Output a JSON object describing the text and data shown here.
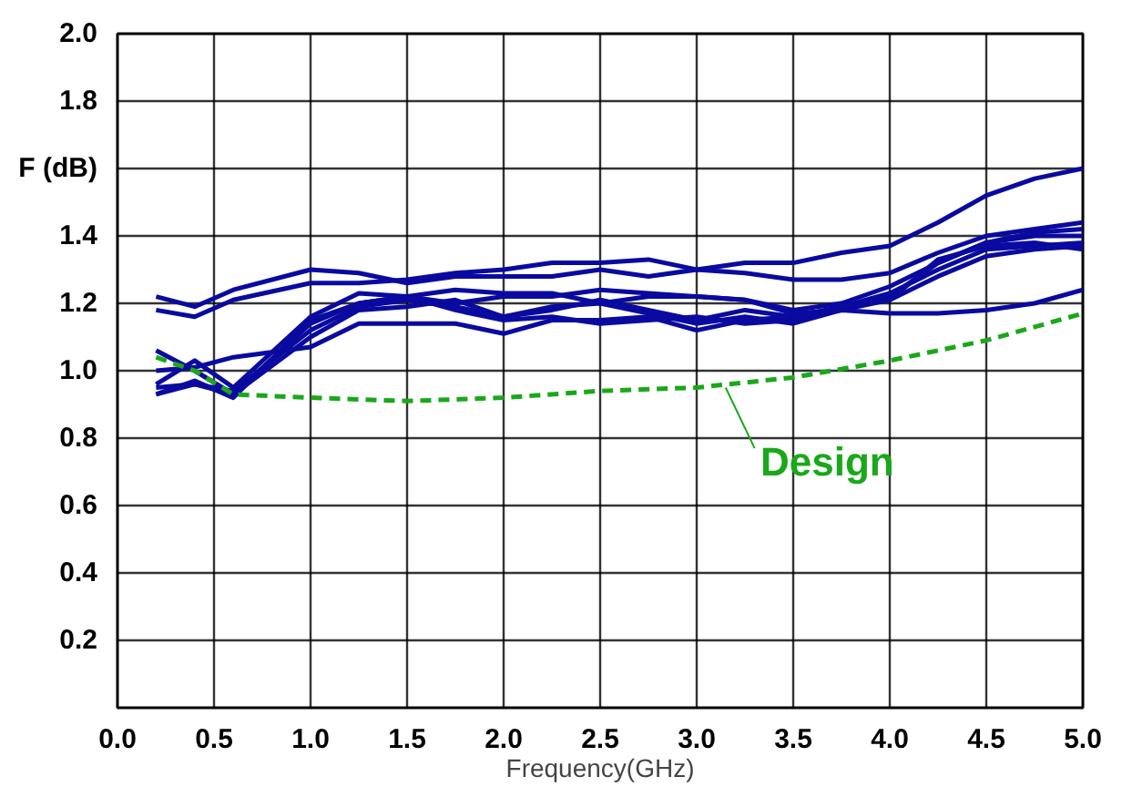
{
  "chart_data": {
    "type": "line",
    "xlabel": "Frequency(GHz)",
    "ylabel": "F (dB)",
    "xlim": [
      0,
      5
    ],
    "ylim": [
      0,
      2
    ],
    "xticks": [
      {
        "value": 0,
        "label": "0.0"
      },
      0.5,
      {
        "value": 1,
        "label": "1.0"
      },
      1.5,
      {
        "value": 2,
        "label": "2.0"
      },
      2.5,
      {
        "value": 3,
        "label": "3.0"
      },
      3.5,
      {
        "value": 4,
        "label": "4.0"
      },
      4.5,
      {
        "value": 5,
        "label": "5.0"
      }
    ],
    "yticks": [
      {
        "value": 0,
        "label": null
      },
      0.2,
      0.4,
      0.6,
      0.8,
      {
        "value": 1,
        "label": "1.0"
      },
      1.2,
      1.4,
      {
        "value": 1.6,
        "label": null
      },
      1.8,
      {
        "value": 2,
        "label": "2.0"
      }
    ],
    "grid": true,
    "marker": "none",
    "x": [
      0.2,
      0.4,
      0.6,
      1.0,
      1.25,
      1.5,
      1.75,
      2.0,
      2.25,
      2.5,
      2.75,
      3.0,
      3.25,
      3.5,
      3.75,
      4.0,
      4.25,
      4.5,
      4.75,
      5.0
    ],
    "series": [
      {
        "color": "#0a0aa0",
        "values": [
          1.22,
          1.19,
          1.24,
          1.3,
          1.29,
          1.26,
          1.28,
          1.28,
          1.28,
          1.3,
          1.28,
          1.3,
          1.29,
          1.27,
          1.27,
          1.29,
          1.35,
          1.4,
          1.42,
          1.44
        ]
      },
      {
        "color": "#0a0aa0",
        "values": [
          1.18,
          1.16,
          1.21,
          1.26,
          1.26,
          1.27,
          1.29,
          1.3,
          1.32,
          1.32,
          1.33,
          1.3,
          1.32,
          1.32,
          1.35,
          1.37,
          1.44,
          1.52,
          1.57,
          1.6
        ]
      },
      {
        "color": "#0a0aa0",
        "values": [
          1.06,
          1.0,
          0.93,
          1.14,
          1.2,
          1.22,
          1.24,
          1.23,
          1.23,
          1.2,
          1.22,
          1.22,
          1.21,
          1.18,
          1.2,
          1.25,
          1.32,
          1.38,
          1.4,
          1.4
        ]
      },
      {
        "color": "#0a0aa0",
        "values": [
          0.96,
          1.03,
          0.95,
          1.16,
          1.23,
          1.22,
          1.2,
          1.22,
          1.22,
          1.24,
          1.23,
          1.22,
          1.21,
          1.17,
          1.18,
          1.22,
          1.32,
          1.38,
          1.41,
          1.42
        ]
      },
      {
        "color": "#0a0aa0",
        "values": [
          0.93,
          0.96,
          0.94,
          1.12,
          1.19,
          1.21,
          1.19,
          1.16,
          1.18,
          1.21,
          1.18,
          1.15,
          1.18,
          1.16,
          1.19,
          1.23,
          1.3,
          1.36,
          1.37,
          1.38
        ]
      },
      {
        "color": "#0a0aa0",
        "values": [
          0.95,
          0.96,
          0.93,
          1.1,
          1.18,
          1.19,
          1.21,
          1.16,
          1.19,
          1.2,
          1.17,
          1.14,
          1.16,
          1.14,
          1.18,
          1.21,
          1.28,
          1.34,
          1.36,
          1.37
        ]
      },
      {
        "color": "#0a0aa0",
        "values": [
          1.0,
          1.01,
          1.04,
          1.07,
          1.14,
          1.14,
          1.14,
          1.11,
          1.15,
          1.15,
          1.16,
          1.12,
          1.15,
          1.16,
          1.18,
          1.17,
          1.17,
          1.18,
          1.2,
          1.24
        ]
      },
      {
        "color": "#0a0aa0",
        "values": [
          0.93,
          0.97,
          0.92,
          1.15,
          1.2,
          1.22,
          1.18,
          1.15,
          1.16,
          1.14,
          1.15,
          1.16,
          1.14,
          1.15,
          1.19,
          1.21,
          1.33,
          1.37,
          1.38,
          1.36
        ]
      },
      {
        "color": "#1aa81a",
        "line_style": "dashed",
        "x": [
          0.2,
          0.4,
          0.6,
          1.0,
          1.5,
          2.0,
          2.5,
          3.0,
          3.5,
          4.0,
          4.5,
          5.0
        ],
        "values": [
          1.04,
          1.0,
          0.93,
          0.92,
          0.91,
          0.92,
          0.94,
          0.95,
          0.98,
          1.03,
          1.09,
          1.17
        ]
      }
    ],
    "annotations": [
      {
        "text": "Design",
        "x": 3.15,
        "y": 0.95
      }
    ]
  }
}
